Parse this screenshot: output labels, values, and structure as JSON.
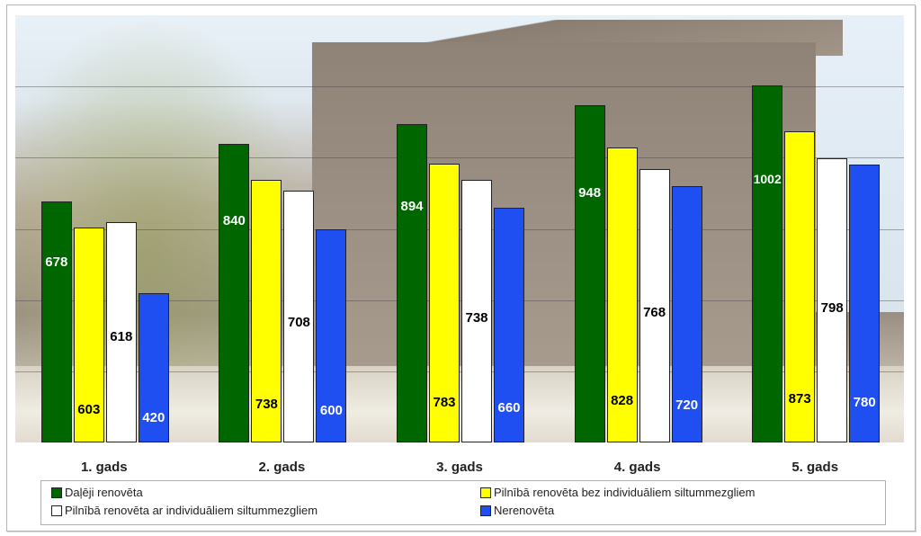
{
  "chart_data": {
    "type": "bar",
    "title": "",
    "xlabel": "",
    "ylabel": "",
    "ylim": [
      0,
      1200
    ],
    "grid": true,
    "gridlines": [
      200,
      400,
      600,
      800,
      1000
    ],
    "legend_position": "bottom",
    "categories": [
      "1. gads",
      "2. gads",
      "3. gads",
      "4. gads",
      "5. gads"
    ],
    "series": [
      {
        "name": "Daļēji renovēta",
        "color": "#006600",
        "label_color": "#ffffff",
        "label_pos": 0.72,
        "values": [
          678,
          840,
          894,
          948,
          1002
        ]
      },
      {
        "name": "Pilnībā renovēta bez individuāliem siltummezgliem",
        "color": "#ffff00",
        "label_color": "#000000",
        "label_pos": 0.12,
        "values": [
          603,
          738,
          783,
          828,
          873
        ]
      },
      {
        "name": "Pilnībā renovēta ar individuāliem siltummezgliem",
        "color": "#ffffff",
        "label_color": "#000000",
        "label_pos": 0.45,
        "values": [
          618,
          708,
          738,
          768,
          798
        ]
      },
      {
        "name": "Nerenovēta",
        "color": "#1f4ff0",
        "label_color": "#ffffff",
        "label_pos": 0.12,
        "values": [
          420,
          600,
          660,
          720,
          780
        ]
      }
    ]
  },
  "legend": {
    "items": [
      {
        "label": "Daļēji renovēta",
        "color": "#006600"
      },
      {
        "label": "Pilnībā renovēta bez individuāliem siltummezgliem",
        "color": "#ffff00"
      },
      {
        "label": "Pilnībā renovēta ar individuāliem siltummezgliem",
        "color": "#ffffff"
      },
      {
        "label": "Nerenovēta",
        "color": "#1f4ff0"
      }
    ]
  }
}
